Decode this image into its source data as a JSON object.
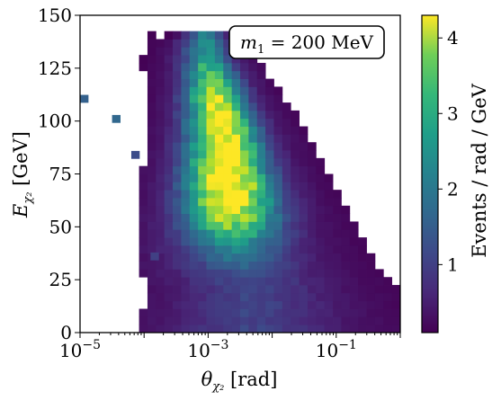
{
  "chart_data": {
    "type": "heatmap",
    "x_axis": {
      "label": "θ_χ₂ [rad]",
      "label_main": "θ",
      "label_sub": "χ₂",
      "label_unit": " [rad]",
      "scale": "log",
      "range": [
        1e-05,
        1.0
      ],
      "ticks": [
        {
          "value": 1e-05,
          "label_base": "10",
          "label_exp": "−5"
        },
        {
          "value": 0.001,
          "label_base": "10",
          "label_exp": "−3"
        },
        {
          "value": 0.1,
          "label_base": "10",
          "label_exp": "−1"
        }
      ]
    },
    "y_axis": {
      "label": "E_χ₂ [GeV]",
      "label_main": "E",
      "label_sub": "χ₂",
      "label_unit": "  [GeV]",
      "scale": "linear",
      "range": [
        0,
        150
      ],
      "ticks": [
        {
          "value": 0,
          "label": "0"
        },
        {
          "value": 25,
          "label": "25"
        },
        {
          "value": 50,
          "label": "50"
        },
        {
          "value": 75,
          "label": "75"
        },
        {
          "value": 100,
          "label": "100"
        },
        {
          "value": 125,
          "label": "125"
        },
        {
          "value": 150,
          "label": "150"
        }
      ]
    },
    "colorbar": {
      "label": "Events / rad / GeV",
      "colormap": "viridis",
      "range": [
        0.1,
        4.3
      ],
      "ticks": [
        {
          "value": 1,
          "label": "1"
        },
        {
          "value": 2,
          "label": "2"
        },
        {
          "value": 3,
          "label": "3"
        },
        {
          "value": 4,
          "label": "4"
        }
      ]
    },
    "annotation": {
      "text": "m₁ = 200 MeV",
      "main": "m",
      "sub": "1",
      "rest": " = 200 MeV",
      "location": "top-right"
    },
    "grid": false,
    "bins": {
      "log10_theta_min": -5,
      "log10_theta_max": 0,
      "log10_theta_count": 38,
      "energy_min": 0,
      "energy_max": 150,
      "energy_count": 40
    },
    "ridge_description": "Density concentrated along a ridge from about (10^-3.0 rad, 130 GeV) to about (10^-2.6 rad, 50 GeV), peak density about 4.3 near 10^-2.7 rad, 70 GeV.",
    "ridge": [
      {
        "log10_theta": -3.05,
        "energy": 130,
        "density": 1.8
      },
      {
        "log10_theta": -2.95,
        "energy": 120,
        "density": 3.0
      },
      {
        "log10_theta": -2.88,
        "energy": 110,
        "density": 3.8
      },
      {
        "log10_theta": -2.8,
        "energy": 100,
        "density": 4.0
      },
      {
        "log10_theta": -2.75,
        "energy": 90,
        "density": 4.1
      },
      {
        "log10_theta": -2.72,
        "energy": 80,
        "density": 4.2
      },
      {
        "log10_theta": -2.68,
        "energy": 70,
        "density": 4.3
      },
      {
        "log10_theta": -2.65,
        "energy": 60,
        "density": 4.0
      },
      {
        "log10_theta": -2.62,
        "energy": 50,
        "density": 2.8
      },
      {
        "log10_theta": -2.6,
        "energy": 40,
        "density": 1.5
      },
      {
        "log10_theta": -2.5,
        "energy": 30,
        "density": 0.8
      },
      {
        "log10_theta": -2.3,
        "energy": 20,
        "density": 0.5
      }
    ],
    "isolated_bins": [
      {
        "log10_theta": -5.0,
        "energy": 110.5,
        "density": 1.4
      },
      {
        "log10_theta": -4.5,
        "energy": 101,
        "density": 1.5
      },
      {
        "log10_theta": -4.2,
        "energy": 84,
        "density": 1.1
      },
      {
        "log10_theta": -3.9,
        "energy": 36,
        "density": 0.9
      }
    ]
  }
}
